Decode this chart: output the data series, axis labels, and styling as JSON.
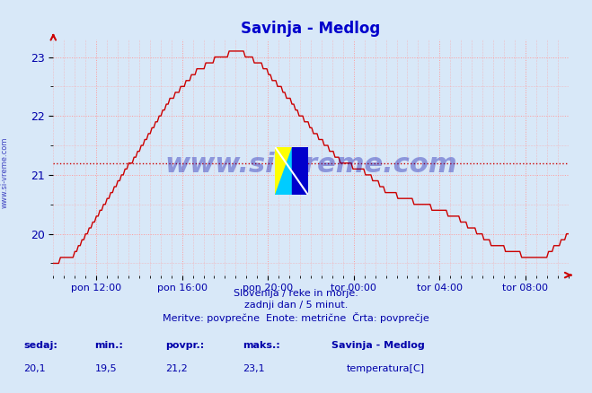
{
  "title": "Savinja - Medlog",
  "title_color": "#0000cc",
  "bg_color": "#d8e8f8",
  "plot_bg_color": "#d8e8f8",
  "line_color": "#cc0000",
  "avg_line_color": "#cc0000",
  "avg_line_value": 21.2,
  "xlabel_color": "#0000aa",
  "ylabel_color": "#0000aa",
  "grid_color": "#ff9999",
  "xlabels": [
    "pon 12:00",
    "pon 16:00",
    "pon 20:00",
    "tor 00:00",
    "tor 04:00",
    "tor 08:00"
  ],
  "ylim": [
    19.3,
    23.3
  ],
  "yticks": [
    20,
    21,
    22,
    23
  ],
  "footer_line1": "Slovenija / reke in morje.",
  "footer_line2": "zadnji dan / 5 minut.",
  "footer_line3": "Meritve: povprečne  Enote: metrične  Črta: povprečje",
  "footer_color": "#0000aa",
  "stats_label_color": "#0000aa",
  "stats_value_color": "#0000aa",
  "legend_title": "Savinja - Medlog",
  "legend_series": "temperatura[C]",
  "legend_color": "#cc0000",
  "watermark": "www.si-vreme.com",
  "watermark_color": "#0000aa",
  "side_text": "www.si-vreme.com",
  "sedaj": "20,1",
  "min_val": "19,5",
  "povpr_val": "21,2",
  "maks_val": "23,1",
  "n_points": 288
}
